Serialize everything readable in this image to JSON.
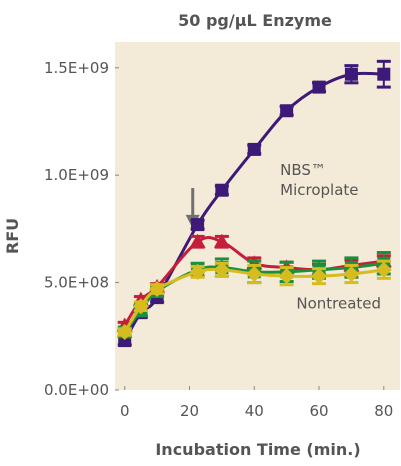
{
  "chart_data": {
    "type": "line",
    "title": "50 pg/μL Enzyme",
    "xlabel": "Incubation Time (min.)",
    "ylabel": "RFU",
    "xlim": [
      -3,
      85
    ],
    "ylim": [
      0,
      1620000000.0
    ],
    "x_ticks": [
      0,
      20,
      40,
      60,
      80
    ],
    "x_tick_labels": [
      "0",
      "20",
      "40",
      "60",
      "80"
    ],
    "y_ticks": [
      0,
      500000000,
      1000000000,
      1500000000
    ],
    "y_tick_labels": [
      "0.0E+00",
      "5.0E+08",
      "1.0E+09",
      "1.5E+09"
    ],
    "grid": false,
    "plot_background": "#f4ead8",
    "x": [
      0,
      5,
      10,
      22.5,
      30,
      40,
      50,
      60,
      70,
      80
    ],
    "series": [
      {
        "name": "",
        "color": "#3d1a78",
        "marker": "square",
        "values": [
          230000000,
          360000000,
          430000000,
          770000000,
          930000000,
          1120000000,
          1300000000,
          1410000000,
          1470000000,
          1470000000
        ],
        "errors": [
          20000000,
          20000000,
          20000000,
          20000000,
          20000000,
          20000000,
          20000000,
          20000000,
          40000000,
          60000000
        ]
      },
      {
        "name": "",
        "color": "#c41e3a",
        "marker": "triangle",
        "values": [
          300000000,
          420000000,
          480000000,
          690000000,
          690000000,
          590000000,
          570000000,
          560000000,
          580000000,
          600000000
        ],
        "errors": [
          15000000,
          15000000,
          15000000,
          25000000,
          25000000,
          25000000,
          25000000,
          25000000,
          25000000,
          25000000
        ]
      },
      {
        "name": "",
        "color": "#1a8f3c",
        "marker": "square",
        "values": [
          270000000,
          370000000,
          460000000,
          560000000,
          570000000,
          550000000,
          550000000,
          560000000,
          570000000,
          590000000
        ],
        "errors": [
          20000000,
          25000000,
          25000000,
          30000000,
          40000000,
          50000000,
          45000000,
          40000000,
          45000000,
          50000000
        ]
      },
      {
        "name": "",
        "color": "#d6bc1e",
        "marker": "diamond",
        "values": [
          270000000,
          390000000,
          470000000,
          550000000,
          560000000,
          540000000,
          530000000,
          530000000,
          540000000,
          560000000
        ],
        "errors": [
          15000000,
          20000000,
          20000000,
          25000000,
          30000000,
          40000000,
          40000000,
          35000000,
          40000000,
          40000000
        ]
      }
    ],
    "annotations": [
      {
        "text_lines": [
          "NBS™",
          "Microplate"
        ],
        "x": 48,
        "y": 1000000000
      },
      {
        "text_lines": [
          "Nontreated"
        ],
        "x": 53,
        "y": 380000000
      }
    ],
    "arrow": {
      "x": 21,
      "y_start": 940000000,
      "y_end": 750000000,
      "color": "#707070"
    }
  }
}
